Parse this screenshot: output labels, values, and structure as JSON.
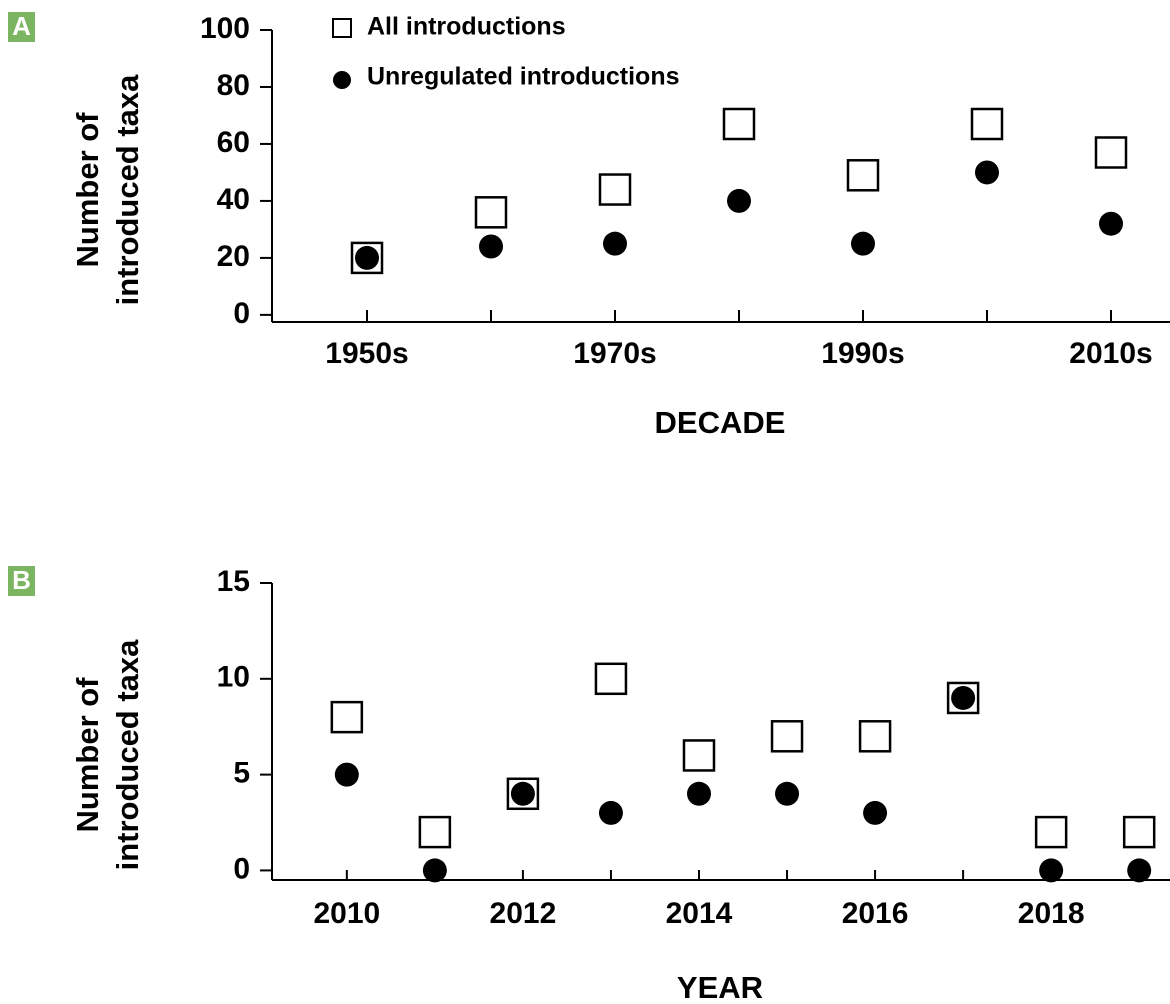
{
  "chart_data": [
    {
      "type": "scatter",
      "panel": "A",
      "categories": [
        "1950s",
        null,
        "1970s",
        null,
        "1990s",
        null,
        "2010s"
      ],
      "xlabel": "DECADE",
      "ylabel": [
        "Number of",
        "introduced taxa"
      ],
      "ylim": [
        -2.5,
        100
      ],
      "yticks": [
        0,
        20,
        40,
        60,
        80,
        100
      ],
      "legend": "upper left",
      "series": [
        {
          "name": "All introductions",
          "color": "#000000",
          "marker": "open-square",
          "values": [
            20,
            36,
            44,
            67,
            49,
            67,
            57
          ]
        },
        {
          "name": "Unregulated introductions",
          "color": "#000000",
          "marker": "filled-circle",
          "values": [
            20,
            24,
            25,
            40,
            25,
            50,
            32
          ]
        }
      ]
    },
    {
      "type": "scatter",
      "panel": "B",
      "x": [
        2010,
        2011,
        2012,
        2013,
        2014,
        2015,
        2016,
        2017,
        2018,
        2019
      ],
      "xlabel": "YEAR",
      "ylabel": [
        "Number of",
        "introduced taxa"
      ],
      "xlim": [
        2009.15,
        2019.35
      ],
      "xticks": [
        2010,
        2012,
        2014,
        2016,
        2018
      ],
      "ylim": [
        -0.5,
        15
      ],
      "yticks": [
        0,
        5,
        10,
        15
      ],
      "series": [
        {
          "color": "#000000",
          "marker": "open-square",
          "values": [
            8,
            2,
            4,
            10,
            6,
            7,
            7,
            9,
            2,
            2
          ]
        },
        {
          "color": "#000000",
          "marker": "filled-circle",
          "values": [
            5,
            0,
            4,
            3,
            4,
            4,
            3,
            9,
            0,
            0
          ]
        }
      ]
    }
  ]
}
